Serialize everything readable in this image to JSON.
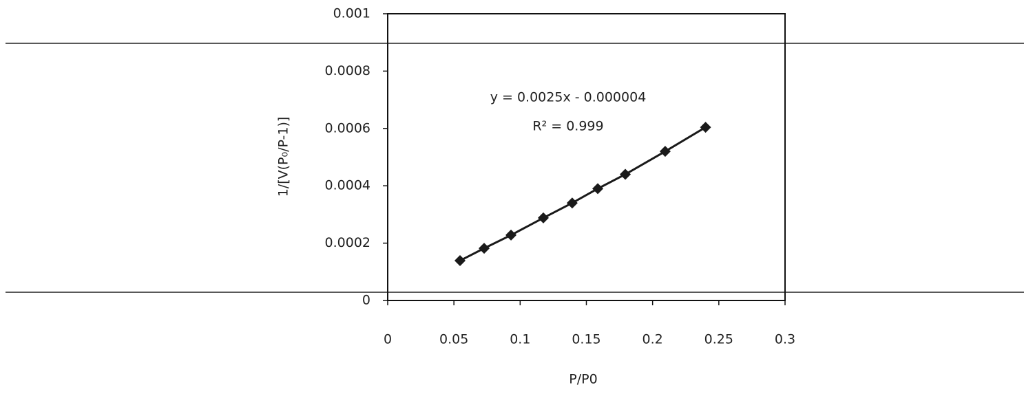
{
  "chart_data": {
    "type": "scatter",
    "x_label": "P/P0",
    "y_label": "1/[V(P₀/P-1)]",
    "annotations": [
      "y = 0.0025x - 0.000004",
      "R² = 0.999"
    ],
    "xlim": [
      0,
      0.3
    ],
    "xticks": [
      0,
      0.05,
      0.1,
      0.15,
      0.2,
      0.25,
      0.3
    ],
    "ylim": [
      0,
      0.001
    ],
    "yticks": [
      0,
      0.0002,
      0.0004,
      0.0006,
      0.0008,
      0.001
    ],
    "series": [
      {
        "color": "#1a1a1a",
        "x": [
          0.0546,
          0.0728,
          0.0931,
          0.1175,
          0.1393,
          0.1586,
          0.1794,
          0.2095,
          0.24
        ],
        "values": [
          0.000139,
          0.000182,
          0.000228,
          0.000288,
          0.00034,
          0.00039,
          0.00044,
          0.00052,
          0.000604
        ]
      }
    ]
  }
}
